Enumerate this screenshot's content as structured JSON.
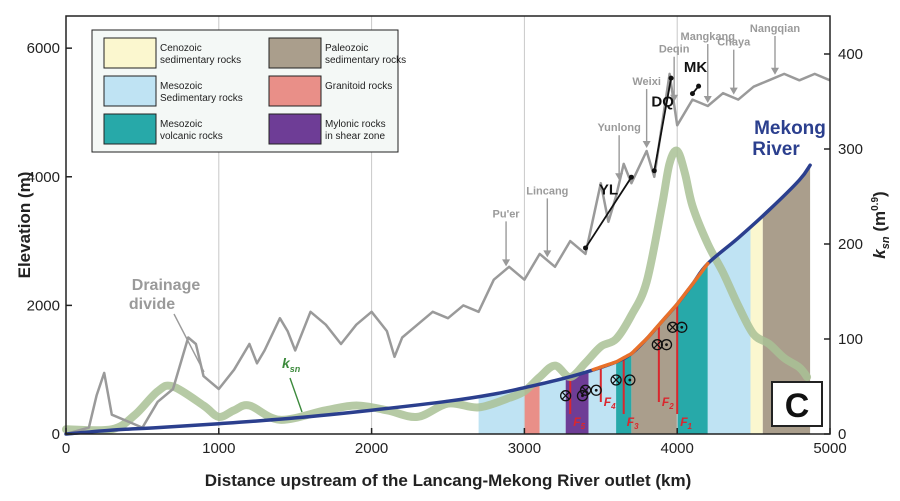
{
  "chart_data": {
    "type": "line",
    "panel_label": "C",
    "xlabel": "Distance upstream of the Lancang-Mekong River outlet (km)",
    "ylabel_left": "Elevation (m)",
    "ylabel_right_main": "k",
    "ylabel_right_sub": "sn",
    "ylabel_right_unit": "(m",
    "ylabel_right_exp": "0.9",
    "ylabel_right_close": ")",
    "xlim": [
      0,
      5000
    ],
    "ylim_left": [
      0,
      6500
    ],
    "ylim_right": [
      0,
      440
    ],
    "x_ticks": [
      "0",
      "1000",
      "2000",
      "3000",
      "4000",
      "5000"
    ],
    "y_ticks_left": [
      "0",
      "2000",
      "4000",
      "6000"
    ],
    "y_ticks_right": [
      "0",
      "100",
      "200",
      "300",
      "400"
    ],
    "vertical_gridlines_km": [
      1000,
      2000,
      3000,
      4000
    ],
    "colors": {
      "river": "#2b3f8e",
      "river_highlight": "#e8702a",
      "divide": "#9a9a9a",
      "ksn": "#a9c195",
      "cenozoic": "#fbf7cf",
      "mesozoic_sed": "#bfe3f3",
      "mesozoic_volc": "#27a9a9",
      "paleozoic": "#aa9e8c",
      "granitoid": "#e98f88",
      "mylonic": "#6e3d96",
      "fault": "#d9272e"
    },
    "legend": [
      {
        "key": "cenozoic",
        "line1": "Cenozoic",
        "line2": "sedimentary rocks"
      },
      {
        "key": "paleozoic",
        "line1": "Paleozoic",
        "line2": "sedimentary rocks"
      },
      {
        "key": "mesozoic_sed",
        "line1": "Mesozoic",
        "line2": "Sedimentary rocks"
      },
      {
        "key": "granitoid",
        "line1": "Granitoid rocks",
        "line2": ""
      },
      {
        "key": "mesozoic_volc",
        "line1": "Mesozoic",
        "line2": "volcanic rocks"
      },
      {
        "key": "mylonic",
        "line1": "Mylonic rocks",
        "line2": "in shear zone"
      }
    ],
    "series": [
      {
        "name": "Mekong River",
        "label_line1": "Mekong",
        "label_line2": "River",
        "axis": "left",
        "x": [
          0,
          300,
          600,
          1000,
          1500,
          2000,
          2500,
          2800,
          3000,
          3200,
          3400,
          3600,
          3700,
          3800,
          3900,
          4000,
          4100,
          4200,
          4400,
          4600,
          4800,
          4870
        ],
        "y": [
          0,
          60,
          100,
          160,
          250,
          370,
          510,
          620,
          720,
          830,
          960,
          1120,
          1250,
          1480,
          1750,
          2020,
          2330,
          2650,
          3050,
          3480,
          3950,
          4180
        ]
      },
      {
        "name": "Drainage divide",
        "label_line1": "Drainage",
        "label_line2": "divide",
        "axis": "left",
        "x": [
          0,
          150,
          200,
          250,
          300,
          400,
          500,
          600,
          700,
          800,
          850,
          900,
          1000,
          1100,
          1200,
          1250,
          1300,
          1400,
          1450,
          1500,
          1600,
          1700,
          1800,
          1900,
          2000,
          2100,
          2150,
          2200,
          2300,
          2400,
          2500,
          2600,
          2700,
          2800,
          2900,
          3000,
          3100,
          3200,
          3300,
          3400,
          3500,
          3550,
          3600,
          3650,
          3700,
          3800,
          3850,
          3900,
          3950,
          4000,
          4100,
          4200,
          4300,
          4400,
          4500,
          4600,
          4700,
          4800,
          4900,
          5000
        ],
        "y": [
          0,
          100,
          600,
          950,
          300,
          200,
          100,
          500,
          700,
          1500,
          1400,
          900,
          700,
          1000,
          1400,
          1100,
          1300,
          1800,
          1600,
          1300,
          1900,
          1700,
          1400,
          1700,
          1900,
          1600,
          1200,
          1500,
          1700,
          1900,
          1800,
          2000,
          1900,
          2400,
          2600,
          2400,
          2800,
          2600,
          3000,
          2800,
          3900,
          3300,
          3700,
          4200,
          3900,
          4400,
          4000,
          4800,
          5600,
          4800,
          5200,
          5100,
          5300,
          5200,
          5400,
          5500,
          5600,
          5500,
          5600,
          5500
        ]
      },
      {
        "name": "k_sn",
        "axis": "right",
        "label_main": "k",
        "label_sub": "sn",
        "x": [
          0,
          300,
          450,
          600,
          700,
          900,
          1000,
          1100,
          1200,
          1400,
          1700,
          1900,
          2100,
          2300,
          2500,
          2700,
          2900,
          3000,
          3100,
          3200,
          3300,
          3400,
          3500,
          3600,
          3700,
          3800,
          3900,
          3950,
          4000,
          4050,
          4100,
          4200,
          4300,
          4400,
          4500,
          4600,
          4700,
          4800,
          4850
        ],
        "y": [
          5,
          5,
          20,
          45,
          50,
          30,
          18,
          25,
          30,
          15,
          25,
          30,
          25,
          18,
          32,
          28,
          38,
          45,
          60,
          72,
          60,
          75,
          92,
          100,
          125,
          160,
          240,
          285,
          298,
          275,
          240,
          200,
          170,
          135,
          105,
          95,
          80,
          70,
          60
        ]
      }
    ],
    "lithology_bands": [
      {
        "key": "mesozoic_sed",
        "x_from": 2700,
        "x_to": 3000
      },
      {
        "key": "granitoid",
        "x_from": 3000,
        "x_to": 3100
      },
      {
        "key": "mesozoic_sed",
        "x_from": 3100,
        "x_to": 3270
      },
      {
        "key": "mylonic",
        "x_from": 3270,
        "x_to": 3420
      },
      {
        "key": "mesozoic_sed",
        "x_from": 3420,
        "x_to": 3600
      },
      {
        "key": "mesozoic_volc",
        "x_from": 3600,
        "x_to": 3700
      },
      {
        "key": "paleozoic",
        "x_from": 3700,
        "x_to": 4000
      },
      {
        "key": "mesozoic_volc",
        "x_from": 4000,
        "x_to": 4200
      },
      {
        "key": "mesozoic_sed",
        "x_from": 4200,
        "x_to": 4480
      },
      {
        "key": "cenozoic",
        "x_from": 4480,
        "x_to": 4560
      },
      {
        "key": "paleozoic",
        "x_from": 4560,
        "x_to": 4870
      }
    ],
    "faults": [
      {
        "label": "F",
        "sub": "1",
        "x": 4000
      },
      {
        "label": "F",
        "sub": "2",
        "x": 3880
      },
      {
        "label": "F",
        "sub": "3",
        "x": 3650
      },
      {
        "label": "F",
        "sub": "4",
        "x": 3500
      },
      {
        "label": "F",
        "sub": "5",
        "x": 3300
      }
    ],
    "place_labels": [
      {
        "name": "Pu'er",
        "x": 2880
      },
      {
        "name": "Lincang",
        "x": 3150
      },
      {
        "name": "Yunlong",
        "x": 3620
      },
      {
        "name": "Weixi",
        "x": 3800
      },
      {
        "name": "Deqin",
        "x": 3980
      },
      {
        "name": "Mangkang",
        "x": 4200
      },
      {
        "name": "Chaya",
        "x": 4370
      },
      {
        "name": "Nangqian",
        "x": 4640
      }
    ],
    "segment_labels": [
      {
        "name": "YL",
        "x_from": 3400,
        "x_to": 3700
      },
      {
        "name": "DQ",
        "x_from": 3850,
        "x_to": 3960
      },
      {
        "name": "MK",
        "x_from": 4100,
        "x_to": 4140
      }
    ]
  }
}
